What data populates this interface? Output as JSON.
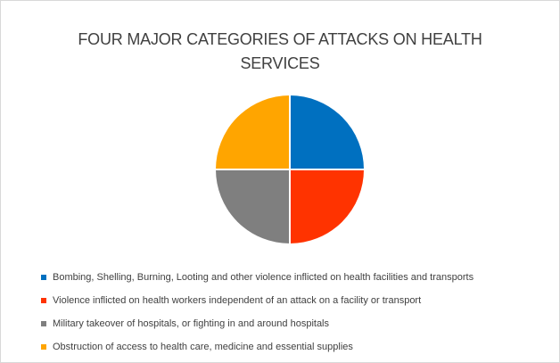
{
  "chart_data": {
    "type": "pie",
    "title": "FOUR MAJOR CATEGORIES OF ATTACKS ON HEALTH SERVICES",
    "legend_position": "bottom",
    "slices": [
      {
        "label": "Bombing, Shelling, Burning, Looting and other violence inflicted on health facilities and transports",
        "value": 25,
        "color": "#0070c0"
      },
      {
        "label": "Violence inflicted on health workers independent of an attack on a facility or transport",
        "value": 25,
        "color": "#ff3300"
      },
      {
        "label": "Military takeover of hospitals, or fighting in and around hospitals",
        "value": 25,
        "color": "#7f7f7f"
      },
      {
        "label": "Obstruction of access to health care, medicine and essential supplies",
        "value": 25,
        "color": "#ffa500"
      }
    ]
  }
}
